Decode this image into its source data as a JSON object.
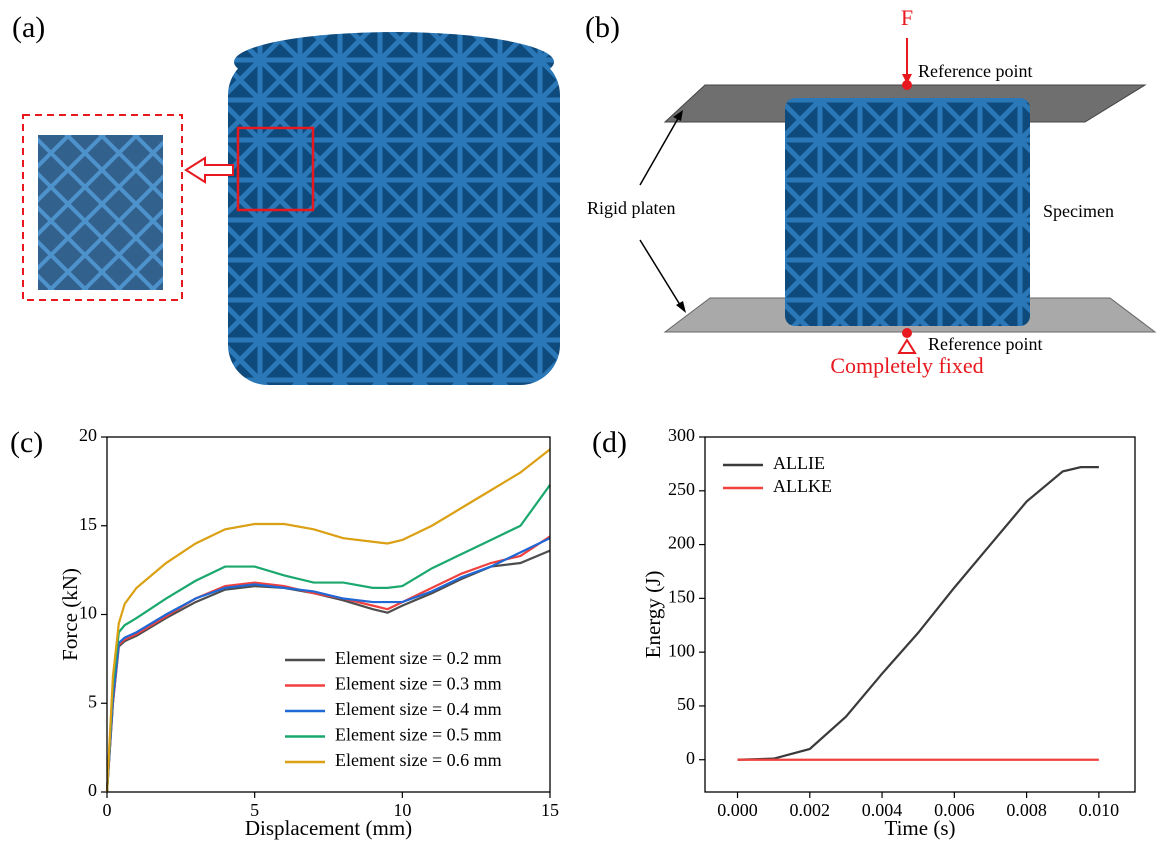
{
  "panels": {
    "a": {
      "label": "(a)"
    },
    "b": {
      "label": "(b)",
      "force": "F",
      "top_point": "Reference point",
      "bottom_point": "Reference point",
      "platen": "Rigid platen",
      "specimen": "Specimen",
      "fixed": "Completely fixed"
    }
  },
  "chart_data": [
    {
      "type": "line",
      "panel_label": "(c)",
      "x_label": "Displacement (mm)",
      "y_label": "Force (kN)",
      "x": [
        0,
        0.2,
        0.4,
        0.6,
        1,
        2,
        3,
        4,
        5,
        6,
        7,
        8,
        9,
        9.5,
        10,
        11,
        12,
        13,
        14,
        15
      ],
      "series": [
        {
          "name": "Element size = 0.2 mm",
          "color": "#4d4d4d",
          "values": [
            0,
            5,
            8.2,
            8.5,
            8.8,
            9.8,
            10.7,
            11.4,
            11.6,
            11.5,
            11.2,
            10.8,
            10.3,
            10.1,
            10.5,
            11.2,
            12.0,
            12.7,
            12.9,
            13.6
          ]
        },
        {
          "name": "Element size = 0.3 mm",
          "color": "#f0413f",
          "values": [
            0,
            5,
            8.3,
            8.6,
            8.9,
            9.9,
            10.9,
            11.6,
            11.8,
            11.6,
            11.2,
            10.9,
            10.5,
            10.3,
            10.7,
            11.5,
            12.3,
            12.9,
            13.3,
            14.4
          ]
        },
        {
          "name": "Element size = 0.4 mm",
          "color": "#1f68d6",
          "values": [
            0,
            5.2,
            8.4,
            8.7,
            9.0,
            10.0,
            10.9,
            11.5,
            11.7,
            11.5,
            11.3,
            10.9,
            10.7,
            10.7,
            10.7,
            11.3,
            12.1,
            12.7,
            13.5,
            14.3
          ]
        },
        {
          "name": "Element size = 0.5 mm",
          "color": "#1aa86e",
          "values": [
            0,
            6,
            9.0,
            9.4,
            9.8,
            10.9,
            11.9,
            12.7,
            12.7,
            12.2,
            11.8,
            11.8,
            11.5,
            11.5,
            11.6,
            12.6,
            13.4,
            14.2,
            15.0,
            17.3
          ]
        },
        {
          "name": "Element size = 0.6 mm",
          "color": "#dba013",
          "values": [
            0,
            6.5,
            9.5,
            10.6,
            11.5,
            12.9,
            14.0,
            14.8,
            15.1,
            15.1,
            14.8,
            14.3,
            14.1,
            14.0,
            14.2,
            15.0,
            16.0,
            17.0,
            18.0,
            19.3
          ]
        }
      ],
      "xlim": [
        0,
        15
      ],
      "xticks": [
        0,
        5,
        10,
        15
      ],
      "ylim": [
        0,
        20
      ],
      "yticks": [
        0,
        5,
        10,
        15,
        20
      ],
      "legend": "lower-right",
      "grid": false
    },
    {
      "type": "line",
      "panel_label": "(d)",
      "x_label": "Time (s)",
      "y_label": "Energy (J)",
      "x": [
        0,
        0.001,
        0.002,
        0.003,
        0.004,
        0.005,
        0.006,
        0.007,
        0.008,
        0.009,
        0.0095,
        0.01
      ],
      "series": [
        {
          "name": "ALLIE",
          "color": "#3a3a3a",
          "values": [
            0,
            1,
            10,
            40,
            80,
            118,
            160,
            200,
            240,
            268,
            272,
            272
          ]
        },
        {
          "name": "ALLKE",
          "color": "#f0413f",
          "values": [
            0,
            0,
            0,
            0,
            0,
            0,
            0,
            0,
            0,
            0,
            0,
            0
          ]
        }
      ],
      "xlim": [
        -0.0009,
        0.011
      ],
      "xticks": [
        {
          "value": 0,
          "label": "0.000"
        },
        {
          "value": 0.002,
          "label": "0.002"
        },
        {
          "value": 0.004,
          "label": "0.004"
        },
        {
          "value": 0.006,
          "label": "0.006"
        },
        {
          "value": 0.008,
          "label": "0.008"
        },
        {
          "value": 0.01,
          "label": "0.010"
        }
      ],
      "ylim": [
        -30,
        300
      ],
      "yticks": [
        0,
        50,
        100,
        150,
        200,
        250,
        300
      ],
      "legend": "upper-left",
      "grid": false
    }
  ]
}
